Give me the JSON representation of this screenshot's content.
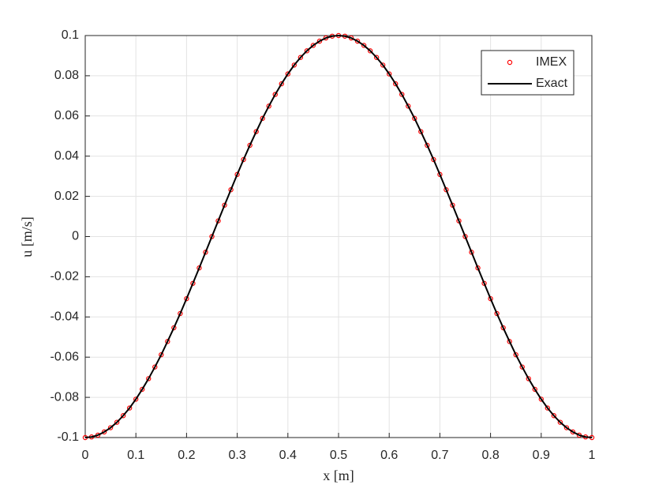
{
  "chart_data": {
    "type": "line",
    "xlabel": "x [m]",
    "ylabel": "u [m/s]",
    "x": [
      0,
      0.0125,
      0.025,
      0.0375,
      0.05,
      0.0625,
      0.075,
      0.0875,
      0.1,
      0.1125,
      0.125,
      0.1375,
      0.15,
      0.1625,
      0.175,
      0.1875,
      0.2,
      0.2125,
      0.225,
      0.2375,
      0.25,
      0.2625,
      0.275,
      0.2875,
      0.3,
      0.3125,
      0.325,
      0.3375,
      0.35,
      0.3625,
      0.375,
      0.3875,
      0.4,
      0.4125,
      0.425,
      0.4375,
      0.45,
      0.4625,
      0.475,
      0.4875,
      0.5,
      0.5125,
      0.525,
      0.5375,
      0.55,
      0.5625,
      0.575,
      0.5875,
      0.6,
      0.6125,
      0.625,
      0.6375,
      0.65,
      0.6625,
      0.675,
      0.6875,
      0.7,
      0.7125,
      0.725,
      0.7375,
      0.75,
      0.7625,
      0.775,
      0.7875,
      0.8,
      0.8125,
      0.825,
      0.8375,
      0.85,
      0.8625,
      0.875,
      0.8875,
      0.9,
      0.9125,
      0.925,
      0.9375,
      0.95,
      0.9625,
      0.975,
      0.9875,
      1
    ],
    "series": [
      {
        "name": "IMEX",
        "color": "#ff0000",
        "marker": "circle",
        "values": [
          -0.1,
          -0.0997,
          -0.0988,
          -0.0972,
          -0.0951,
          -0.0924,
          -0.0891,
          -0.0853,
          -0.0809,
          -0.076,
          -0.0707,
          -0.0649,
          -0.0588,
          -0.0522,
          -0.0454,
          -0.0383,
          -0.0309,
          -0.0233,
          -0.0156,
          -0.0078,
          0,
          0.0078,
          0.0156,
          0.0233,
          0.0309,
          0.0383,
          0.0454,
          0.0522,
          0.0588,
          0.0649,
          0.0707,
          0.076,
          0.0809,
          0.0853,
          0.0891,
          0.0924,
          0.0951,
          0.0972,
          0.0988,
          0.0997,
          0.1,
          0.0997,
          0.0988,
          0.0972,
          0.0951,
          0.0924,
          0.0891,
          0.0853,
          0.0809,
          0.076,
          0.0707,
          0.0649,
          0.0588,
          0.0522,
          0.0454,
          0.0383,
          0.0309,
          0.0233,
          0.0156,
          0.0078,
          0,
          -0.0078,
          -0.0156,
          -0.0233,
          -0.0309,
          -0.0383,
          -0.0454,
          -0.0522,
          -0.0588,
          -0.0649,
          -0.0707,
          -0.076,
          -0.0809,
          -0.0853,
          -0.0891,
          -0.0924,
          -0.0951,
          -0.0972,
          -0.0988,
          -0.0997,
          -0.1
        ]
      },
      {
        "name": "Exact",
        "color": "#000000",
        "values": [
          -0.1,
          -0.0997,
          -0.0988,
          -0.0972,
          -0.0951,
          -0.0924,
          -0.0891,
          -0.0853,
          -0.0809,
          -0.076,
          -0.0707,
          -0.0649,
          -0.0588,
          -0.0522,
          -0.0454,
          -0.0383,
          -0.0309,
          -0.0233,
          -0.0156,
          -0.0078,
          0,
          0.0078,
          0.0156,
          0.0233,
          0.0309,
          0.0383,
          0.0454,
          0.0522,
          0.0588,
          0.0649,
          0.0707,
          0.076,
          0.0809,
          0.0853,
          0.0891,
          0.0924,
          0.0951,
          0.0972,
          0.0988,
          0.0997,
          0.1,
          0.0997,
          0.0988,
          0.0972,
          0.0951,
          0.0924,
          0.0891,
          0.0853,
          0.0809,
          0.076,
          0.0707,
          0.0649,
          0.0588,
          0.0522,
          0.0454,
          0.0383,
          0.0309,
          0.0233,
          0.0156,
          0.0078,
          0,
          -0.0078,
          -0.0156,
          -0.0233,
          -0.0309,
          -0.0383,
          -0.0454,
          -0.0522,
          -0.0588,
          -0.0649,
          -0.0707,
          -0.076,
          -0.0809,
          -0.0853,
          -0.0891,
          -0.0924,
          -0.0951,
          -0.0972,
          -0.0988,
          -0.0997,
          -0.1
        ]
      }
    ],
    "xlim": [
      0,
      1
    ],
    "xticks": [
      0,
      0.1,
      0.2,
      0.3,
      0.4,
      0.5,
      0.6,
      0.7,
      0.8,
      0.9,
      1
    ],
    "ylim": [
      -0.1,
      0.1
    ],
    "yticks": [
      -0.1,
      -0.08,
      -0.06,
      -0.04,
      -0.02,
      0,
      0.02,
      0.04,
      0.06,
      0.08,
      0.1
    ],
    "grid": true,
    "legend": "top-right"
  }
}
